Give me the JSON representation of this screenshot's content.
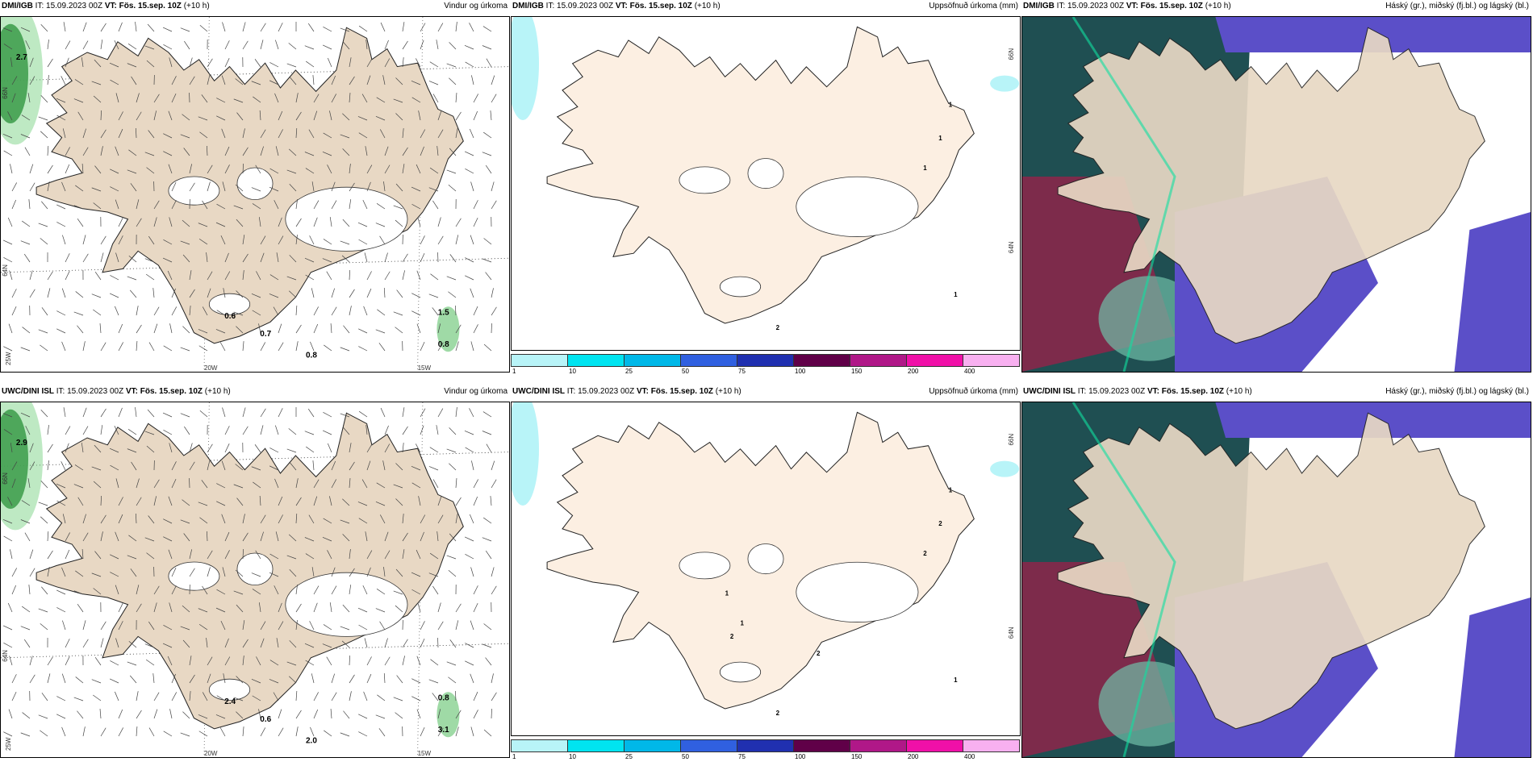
{
  "panels": [
    {
      "id": "p1",
      "kind": "wind",
      "model": "DMI/IGB",
      "it_label": "IT:",
      "it": "15.09.2023 00Z",
      "vt_label": "VT:",
      "vt": "Fös. 15.sep. 10Z",
      "lead": "(+10 h)",
      "title": "Vindur og úrkoma",
      "labels": [
        "2.7",
        "0.6",
        "0.7",
        "1.5",
        "0.8",
        "0.8"
      ],
      "axis": {
        "lat1": "66N",
        "lat2": "64N",
        "lon_left": "25W",
        "lon1": "20W",
        "lon2": "15W"
      }
    },
    {
      "id": "p2",
      "kind": "precip",
      "model": "DMI/IGB",
      "it_label": "IT:",
      "it": "15.09.2023 00Z",
      "vt_label": "VT:",
      "vt": "Fös. 15.sep. 10Z",
      "lead": "(+10 h)",
      "title": "Uppsöfnuð úrkoma (mm)",
      "labels": [
        "1",
        "1",
        "1",
        "1",
        "2"
      ],
      "axis": {
        "lat1": "66N",
        "lat2": "64N"
      }
    },
    {
      "id": "p3",
      "kind": "cloud",
      "model": "DMI/IGB",
      "it_label": "IT:",
      "it": "15.09.2023 00Z",
      "vt_label": "VT:",
      "vt": "Fös. 15.sep. 10Z",
      "lead": "(+10 h)",
      "title": "Háský (gr.), miðský (fj.bl.) og lágský (bl.)"
    },
    {
      "id": "p4",
      "kind": "wind",
      "model": "UWC/DINI ISL",
      "it_label": "IT:",
      "it": "15.09.2023 00Z",
      "vt_label": "VT:",
      "vt": "Fös. 15.sep. 10Z",
      "lead": "(+10 h)",
      "title": "Vindur og úrkoma",
      "labels": [
        "2.9",
        "2.4",
        "0.6",
        "0.8",
        "3.1",
        "2.0"
      ],
      "axis": {
        "lat1": "66N",
        "lat2": "64N",
        "lon_left": "25W",
        "lon1": "20W",
        "lon2": "15W"
      }
    },
    {
      "id": "p5",
      "kind": "precip",
      "model": "UWC/DINI ISL",
      "it_label": "IT:",
      "it": "15.09.2023 00Z",
      "vt_label": "VT:",
      "vt": "Fös. 15.sep. 10Z",
      "lead": "(+10 h)",
      "title": "Uppsöfnuð úrkoma (mm)",
      "labels": [
        "1",
        "2",
        "2",
        "1",
        "2",
        "1",
        "1",
        "2",
        "2"
      ],
      "axis": {
        "lat1": "66N",
        "lat2": "64N"
      }
    },
    {
      "id": "p6",
      "kind": "cloud",
      "model": "UWC/DINI ISL",
      "it_label": "IT:",
      "it": "15.09.2023 00Z",
      "vt_label": "VT:",
      "vt": "Fös. 15.sep. 10Z",
      "lead": "(+10 h)",
      "title": "Háský (gr.), miðský (fj.bl.) og lágský (bl.)"
    }
  ],
  "colorbar": {
    "ticks": [
      "1",
      "10",
      "25",
      "50",
      "75",
      "100",
      "150",
      "200",
      "400"
    ],
    "colors": [
      "#b8f4f8",
      "#00e4f0",
      "#00b8e8",
      "#3060e0",
      "#2030b0",
      "#600048",
      "#b01888",
      "#f010a8",
      "#f8b0f0"
    ]
  },
  "colors": {
    "land": "#e8d8c4",
    "land_precip": "#fcefe2",
    "cloud_low": "#1f4f52",
    "cloud_mid": "#5b4fc8",
    "cloud_high": "#9e1f4a",
    "precip_green": "#1e7a2e"
  }
}
